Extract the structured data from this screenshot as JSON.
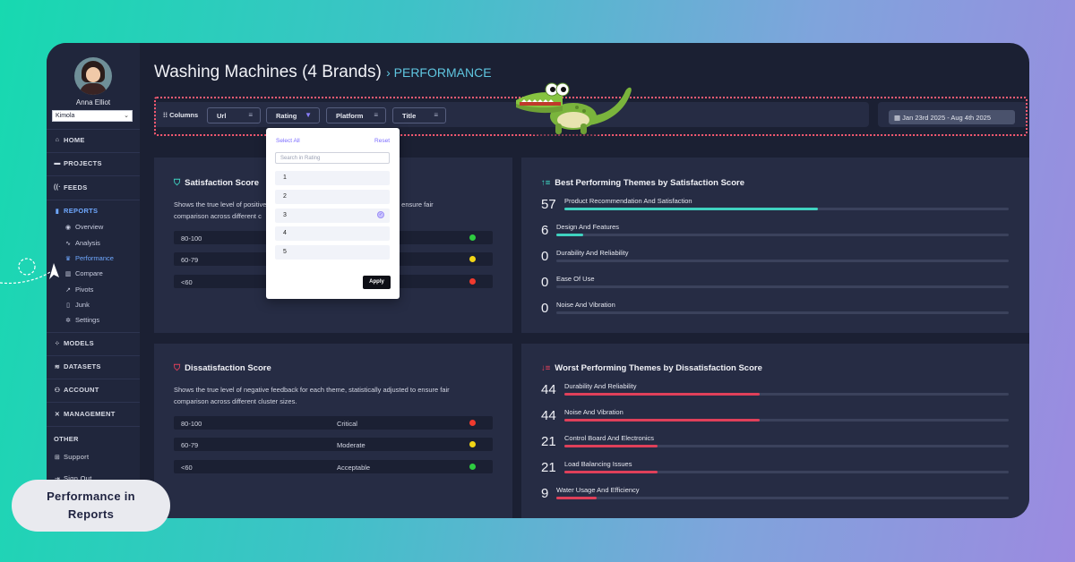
{
  "user": {
    "name": "Anna Elliot",
    "org": "Kimola"
  },
  "nav": {
    "home": "HOME",
    "projects": "PROJECTS",
    "feeds": "FEEDS",
    "reports": "REPORTS",
    "reports_sub": [
      "Overview",
      "Analysis",
      "Performance",
      "Compare",
      "Pivots",
      "Junk",
      "Settings"
    ],
    "models": "MODELS",
    "datasets": "DATASETS",
    "account": "ACCOUNT",
    "management": "MANAGEMENT",
    "other": "OTHER",
    "support": "Support",
    "signout": "Sign Out"
  },
  "header": {
    "title": "Washing Machines (4 Brands)",
    "section": "PERFORMANCE"
  },
  "filters": {
    "columns_label": "Columns",
    "chips": [
      "Url",
      "Rating",
      "Platform",
      "Title"
    ],
    "date_range": "Jan 23rd 2025 - Aug 4th 2025"
  },
  "rating_dropdown": {
    "select_all": "Select All",
    "reset": "Reset",
    "search_placeholder": "Search in Rating",
    "options": [
      "1",
      "2",
      "3",
      "4",
      "5"
    ],
    "selected": "3",
    "apply": "Apply"
  },
  "satisfaction": {
    "title": "Satisfaction Score",
    "desc_line1": "Shows the true level of positive",
    "desc_line1_end": "adjusted to ensure fair",
    "desc_line2": "comparison across different c",
    "bands": [
      {
        "range": "80-100",
        "color": "#2ecc40"
      },
      {
        "range": "60-79",
        "color": "#f1d516"
      },
      {
        "range": "<60",
        "color": "#f03a2e"
      }
    ]
  },
  "dissatisfaction": {
    "title": "Dissatisfaction Score",
    "desc_line1": "Shows the true level of negative feedback for each theme, statistically adjusted to ensure fair",
    "desc_line2": "comparison across different cluster sizes.",
    "bands": [
      {
        "range": "80-100",
        "level": "Critical",
        "color": "#f03a2e"
      },
      {
        "range": "60-79",
        "level": "Moderate",
        "color": "#f1d516"
      },
      {
        "range": "<60",
        "level": "Acceptable",
        "color": "#2ecc40"
      }
    ]
  },
  "best_themes": {
    "title": "Best Performing Themes by Satisfaction Score",
    "bar_color": "#3fd2c0",
    "items": [
      {
        "score": "57",
        "label": "Product Recommendation And Satisfaction",
        "value": 57
      },
      {
        "score": "6",
        "label": "Design And Features",
        "value": 6
      },
      {
        "score": "0",
        "label": "Durability And Reliability",
        "value": 0
      },
      {
        "score": "0",
        "label": "Ease Of Use",
        "value": 0
      },
      {
        "score": "0",
        "label": "Noise And Vibration",
        "value": 0
      }
    ]
  },
  "worst_themes": {
    "title": "Worst Performing Themes by Dissatisfaction Score",
    "bar_color": "#e0405a",
    "items": [
      {
        "score": "44",
        "label": "Durability And Reliability",
        "value": 44
      },
      {
        "score": "44",
        "label": "Noise And Vibration",
        "value": 44
      },
      {
        "score": "21",
        "label": "Control Board And Electronics",
        "value": 21
      },
      {
        "score": "21",
        "label": "Load Balancing Issues",
        "value": 21
      },
      {
        "score": "9",
        "label": "Water Usage And Efficiency",
        "value": 9
      }
    ]
  },
  "callout": {
    "line1": "Performance in",
    "line2": "Reports"
  }
}
